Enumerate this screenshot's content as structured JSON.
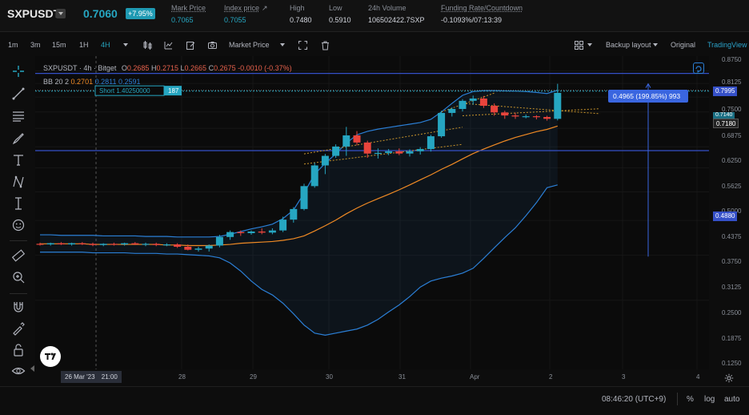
{
  "ticker": {
    "symbol": "SXPUSDT",
    "last_price": "0.7060",
    "change_pct": "+7.95%",
    "stats": [
      {
        "label": "Mark Price",
        "value": "0.7065"
      },
      {
        "label": "Index price",
        "value": "0.7055"
      },
      {
        "label": "High",
        "value": "0.7480"
      },
      {
        "label": "Low",
        "value": "0.5910"
      },
      {
        "label": "24h Volume",
        "value": "106502422.7SXP"
      },
      {
        "label": "Funding Rate/Countdown",
        "value": "-0.1093%/07:13:39"
      }
    ]
  },
  "toolbar": {
    "timeframes": [
      "1m",
      "3m",
      "15m",
      "1H",
      "4H"
    ],
    "active_timeframe": "4H",
    "price_type": "Market Price",
    "layout_label": "Backup layout",
    "view_original": "Original",
    "view_tradingview": "TradingView"
  },
  "legend": {
    "title": "SXPUSDT · 4h · Bitget",
    "o_label": "O",
    "o_value": "0.2685",
    "h_label": "H",
    "h_value": "0.2715",
    "l_label": "L",
    "l_value": "0.2665",
    "c_label": "C",
    "c_value": "0.2675",
    "change": "-0.0010 (-0.37%)",
    "bb_label": "BB 20 2",
    "bb_mid": "0.2701",
    "bb_upper": "0.2811",
    "bb_lower": "0.2591"
  },
  "price_axis": {
    "ticks": [
      "0.8750",
      "0.8125",
      "0.7500",
      "0.6875",
      "0.6250",
      "0.5625",
      "0.5000",
      "0.4375",
      "0.3750",
      "0.3125",
      "0.2500",
      "0.1875",
      "0.1250"
    ],
    "labels": {
      "upper_line": "0.7995",
      "current": "0.7180",
      "current_overlap": "0.7140",
      "lower_line": "0.4880"
    }
  },
  "time_axis": {
    "ticks": [
      "28",
      "29",
      "30",
      "31",
      "Apr",
      "2",
      "3",
      "4"
    ],
    "crosshair_date": "26 Mar '23",
    "crosshair_time": "21:00"
  },
  "annotations": {
    "short_label": "Short 1.40250000",
    "short_qty": "187",
    "measure_label": "0.4965 (199.85%) 993"
  },
  "status": {
    "clock": "08:46:20 (UTC+9)",
    "percent_label": "%",
    "log_label": "log",
    "auto_label": "auto"
  },
  "colors": {
    "up": "#26a6c1",
    "down": "#e9443c",
    "bb_band": "#2b7fd6",
    "bb_basis": "#f08a24",
    "hline": "#3550c8",
    "accent": "#26a6c1"
  },
  "chart_data": {
    "type": "candlestick",
    "timeframe": "4h",
    "y_scale": "log",
    "ylim": [
      0.125,
      0.875
    ],
    "time_ticks": [
      "28",
      "29",
      "30",
      "31",
      "Apr",
      "2",
      "3",
      "4"
    ],
    "candles": [
      {
        "o": 0.269,
        "h": 0.271,
        "l": 0.266,
        "c": 0.268
      },
      {
        "o": 0.268,
        "h": 0.271,
        "l": 0.266,
        "c": 0.27
      },
      {
        "o": 0.27,
        "h": 0.272,
        "l": 0.267,
        "c": 0.268
      },
      {
        "o": 0.268,
        "h": 0.271,
        "l": 0.266,
        "c": 0.27
      },
      {
        "o": 0.27,
        "h": 0.272,
        "l": 0.267,
        "c": 0.269
      },
      {
        "o": 0.269,
        "h": 0.271,
        "l": 0.265,
        "c": 0.267
      },
      {
        "o": 0.267,
        "h": 0.27,
        "l": 0.265,
        "c": 0.269
      },
      {
        "o": 0.269,
        "h": 0.271,
        "l": 0.266,
        "c": 0.268
      },
      {
        "o": 0.268,
        "h": 0.271,
        "l": 0.266,
        "c": 0.27
      },
      {
        "o": 0.27,
        "h": 0.272,
        "l": 0.267,
        "c": 0.268
      },
      {
        "o": 0.268,
        "h": 0.271,
        "l": 0.265,
        "c": 0.269
      },
      {
        "o": 0.269,
        "h": 0.271,
        "l": 0.265,
        "c": 0.267
      },
      {
        "o": 0.267,
        "h": 0.27,
        "l": 0.265,
        "c": 0.268
      },
      {
        "o": 0.268,
        "h": 0.27,
        "l": 0.262,
        "c": 0.264
      },
      {
        "o": 0.264,
        "h": 0.268,
        "l": 0.258,
        "c": 0.259
      },
      {
        "o": 0.259,
        "h": 0.264,
        "l": 0.256,
        "c": 0.261
      },
      {
        "o": 0.261,
        "h": 0.268,
        "l": 0.256,
        "c": 0.266
      },
      {
        "o": 0.266,
        "h": 0.285,
        "l": 0.263,
        "c": 0.281
      },
      {
        "o": 0.281,
        "h": 0.293,
        "l": 0.276,
        "c": 0.29
      },
      {
        "o": 0.29,
        "h": 0.293,
        "l": 0.283,
        "c": 0.288
      },
      {
        "o": 0.288,
        "h": 0.293,
        "l": 0.285,
        "c": 0.291
      },
      {
        "o": 0.291,
        "h": 0.297,
        "l": 0.286,
        "c": 0.289
      },
      {
        "o": 0.289,
        "h": 0.297,
        "l": 0.286,
        "c": 0.293
      },
      {
        "o": 0.293,
        "h": 0.32,
        "l": 0.29,
        "c": 0.314
      },
      {
        "o": 0.314,
        "h": 0.34,
        "l": 0.308,
        "c": 0.336
      },
      {
        "o": 0.336,
        "h": 0.395,
        "l": 0.333,
        "c": 0.389
      },
      {
        "o": 0.389,
        "h": 0.452,
        "l": 0.385,
        "c": 0.444
      },
      {
        "o": 0.444,
        "h": 0.478,
        "l": 0.42,
        "c": 0.472
      },
      {
        "o": 0.472,
        "h": 0.508,
        "l": 0.466,
        "c": 0.501
      },
      {
        "o": 0.501,
        "h": 0.568,
        "l": 0.472,
        "c": 0.538
      },
      {
        "o": 0.538,
        "h": 0.553,
        "l": 0.505,
        "c": 0.514
      },
      {
        "o": 0.514,
        "h": 0.52,
        "l": 0.466,
        "c": 0.479
      },
      {
        "o": 0.479,
        "h": 0.495,
        "l": 0.464,
        "c": 0.481
      },
      {
        "o": 0.481,
        "h": 0.493,
        "l": 0.474,
        "c": 0.486
      },
      {
        "o": 0.486,
        "h": 0.495,
        "l": 0.474,
        "c": 0.479
      },
      {
        "o": 0.479,
        "h": 0.492,
        "l": 0.47,
        "c": 0.486
      },
      {
        "o": 0.486,
        "h": 0.499,
        "l": 0.476,
        "c": 0.493
      },
      {
        "o": 0.493,
        "h": 0.54,
        "l": 0.485,
        "c": 0.535
      },
      {
        "o": 0.535,
        "h": 0.63,
        "l": 0.53,
        "c": 0.621
      },
      {
        "o": 0.621,
        "h": 0.643,
        "l": 0.607,
        "c": 0.637
      },
      {
        "o": 0.637,
        "h": 0.678,
        "l": 0.627,
        "c": 0.671
      },
      {
        "o": 0.671,
        "h": 0.694,
        "l": 0.655,
        "c": 0.681
      },
      {
        "o": 0.681,
        "h": 0.692,
        "l": 0.641,
        "c": 0.65
      },
      {
        "o": 0.65,
        "h": 0.66,
        "l": 0.61,
        "c": 0.623
      },
      {
        "o": 0.623,
        "h": 0.63,
        "l": 0.598,
        "c": 0.611
      },
      {
        "o": 0.611,
        "h": 0.622,
        "l": 0.598,
        "c": 0.607
      },
      {
        "o": 0.607,
        "h": 0.615,
        "l": 0.6,
        "c": 0.608
      },
      {
        "o": 0.608,
        "h": 0.612,
        "l": 0.596,
        "c": 0.605
      },
      {
        "o": 0.605,
        "h": 0.61,
        "l": 0.591,
        "c": 0.598
      },
      {
        "o": 0.598,
        "h": 0.748,
        "l": 0.592,
        "c": 0.706
      }
    ],
    "bollinger": {
      "period": 20,
      "mult": 2,
      "upper": [
        0.285,
        0.285,
        0.284,
        0.284,
        0.284,
        0.284,
        0.283,
        0.283,
        0.283,
        0.283,
        0.282,
        0.282,
        0.282,
        0.281,
        0.281,
        0.281,
        0.281,
        0.282,
        0.286,
        0.291,
        0.296,
        0.3,
        0.305,
        0.316,
        0.334,
        0.372,
        0.42,
        0.45,
        0.478,
        0.512,
        0.54,
        0.552,
        0.56,
        0.566,
        0.572,
        0.578,
        0.584,
        0.596,
        0.625,
        0.66,
        0.695,
        0.712,
        0.716,
        0.716,
        0.715,
        0.714,
        0.712,
        0.708,
        0.703,
        0.718
      ],
      "basis": [
        0.269,
        0.269,
        0.269,
        0.269,
        0.269,
        0.268,
        0.268,
        0.268,
        0.268,
        0.268,
        0.268,
        0.268,
        0.267,
        0.267,
        0.266,
        0.266,
        0.266,
        0.267,
        0.268,
        0.27,
        0.271,
        0.272,
        0.273,
        0.275,
        0.278,
        0.283,
        0.292,
        0.302,
        0.313,
        0.326,
        0.338,
        0.349,
        0.359,
        0.369,
        0.38,
        0.392,
        0.405,
        0.418,
        0.433,
        0.447,
        0.463,
        0.479,
        0.493,
        0.506,
        0.519,
        0.531,
        0.541,
        0.551,
        0.559,
        0.571
      ],
      "lower": [
        0.255,
        0.255,
        0.255,
        0.255,
        0.255,
        0.254,
        0.254,
        0.254,
        0.254,
        0.253,
        0.253,
        0.253,
        0.252,
        0.252,
        0.251,
        0.25,
        0.249,
        0.246,
        0.238,
        0.226,
        0.212,
        0.201,
        0.194,
        0.184,
        0.172,
        0.16,
        0.152,
        0.15,
        0.152,
        0.154,
        0.156,
        0.16,
        0.166,
        0.174,
        0.182,
        0.192,
        0.204,
        0.212,
        0.216,
        0.219,
        0.223,
        0.23,
        0.245,
        0.262,
        0.28,
        0.298,
        0.322,
        0.35,
        0.385,
        0.392
      ]
    },
    "hlines": [
      0.7995,
      0.488
    ],
    "position": {
      "side": "Short",
      "entry": 1.4025,
      "qty": 187
    }
  }
}
